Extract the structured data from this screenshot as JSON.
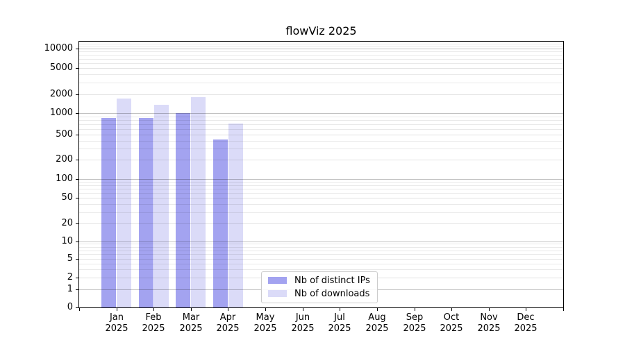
{
  "title": "flowViz 2025",
  "x_axis": {
    "months": [
      "Jan",
      "Feb",
      "Mar",
      "Apr",
      "May",
      "Jun",
      "Jul",
      "Aug",
      "Sep",
      "Oct",
      "Nov",
      "Dec"
    ],
    "year": "2025"
  },
  "y_axis": {
    "tick_labels": [
      "0",
      "1",
      "2",
      "5",
      "10",
      "20",
      "50",
      "100",
      "200",
      "500",
      "1000",
      "2000",
      "5000",
      "10000"
    ]
  },
  "chart_data": {
    "type": "bar",
    "title": "flowViz 2025",
    "categories": [
      "Jan 2025",
      "Feb 2025",
      "Mar 2025",
      "Apr 2025",
      "May 2025",
      "Jun 2025",
      "Jul 2025",
      "Aug 2025",
      "Sep 2025",
      "Oct 2025",
      "Nov 2025",
      "Dec 2025"
    ],
    "series": [
      {
        "name": "Nb of distinct IPs",
        "color": "#a3a3f0",
        "values": [
          860,
          850,
          1000,
          420,
          null,
          null,
          null,
          null,
          null,
          null,
          null,
          null
        ]
      },
      {
        "name": "Nb of downloads",
        "color": "#dbdbf8",
        "values": [
          1700,
          1350,
          1780,
          710,
          null,
          null,
          null,
          null,
          null,
          null,
          null,
          null
        ]
      }
    ],
    "xlabel": "",
    "ylabel": "",
    "yscale": "symlog",
    "yticks": [
      0,
      1,
      2,
      5,
      10,
      20,
      50,
      100,
      200,
      500,
      1000,
      2000,
      5000,
      10000
    ],
    "ylim": [
      0,
      12900
    ],
    "grid": true,
    "legend_position": "lower center"
  }
}
